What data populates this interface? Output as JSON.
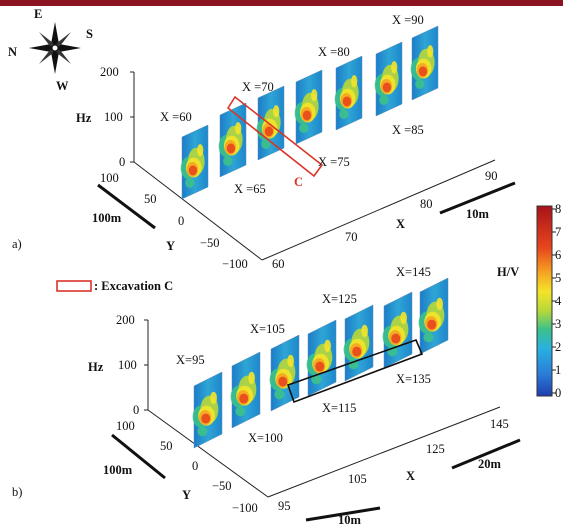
{
  "compass": {
    "n": "N",
    "e": "E",
    "s": "S",
    "w": "W"
  },
  "panel_a": {
    "tag": "a)",
    "hz_label": "Hz",
    "hz_ticks": [
      "200",
      "100",
      "0"
    ],
    "y_label": "Y",
    "y_ticks": [
      "100",
      "50",
      "0",
      "−50",
      "−100"
    ],
    "x_label": "X",
    "x_ticks": [
      "60",
      "70",
      "80",
      "90"
    ],
    "scale_y": "100m",
    "scale_x": "10m",
    "slice_labels": [
      "X =60",
      "X =65",
      "X =70",
      "X =75",
      "X =80",
      "X =85",
      "X =90"
    ],
    "excavation_mark": "C"
  },
  "panel_b": {
    "tag": "b)",
    "hz_label": "Hz",
    "hz_ticks": [
      "200",
      "100",
      "0"
    ],
    "y_label": "Y",
    "y_ticks": [
      "100",
      "50",
      "0",
      "−50",
      "−100"
    ],
    "x_label": "X",
    "x_ticks": [
      "95",
      "105",
      "125",
      "145"
    ],
    "scale_y": "100m",
    "scale_x": "20m",
    "scale_bottom": "10m",
    "slice_labels": [
      "X=95",
      "X=100",
      "X=105",
      "X=115",
      "X=125",
      "X=135",
      "X=145"
    ]
  },
  "legend": {
    "excavation": ": Excavation C"
  },
  "colorbar": {
    "title": "H/V",
    "ticks": [
      "8",
      "7",
      "6",
      "5",
      "4",
      "3",
      "2",
      "1",
      "0"
    ]
  },
  "colors": {
    "excavation_box": "#d9342b",
    "frame_top": "#8a1520"
  }
}
